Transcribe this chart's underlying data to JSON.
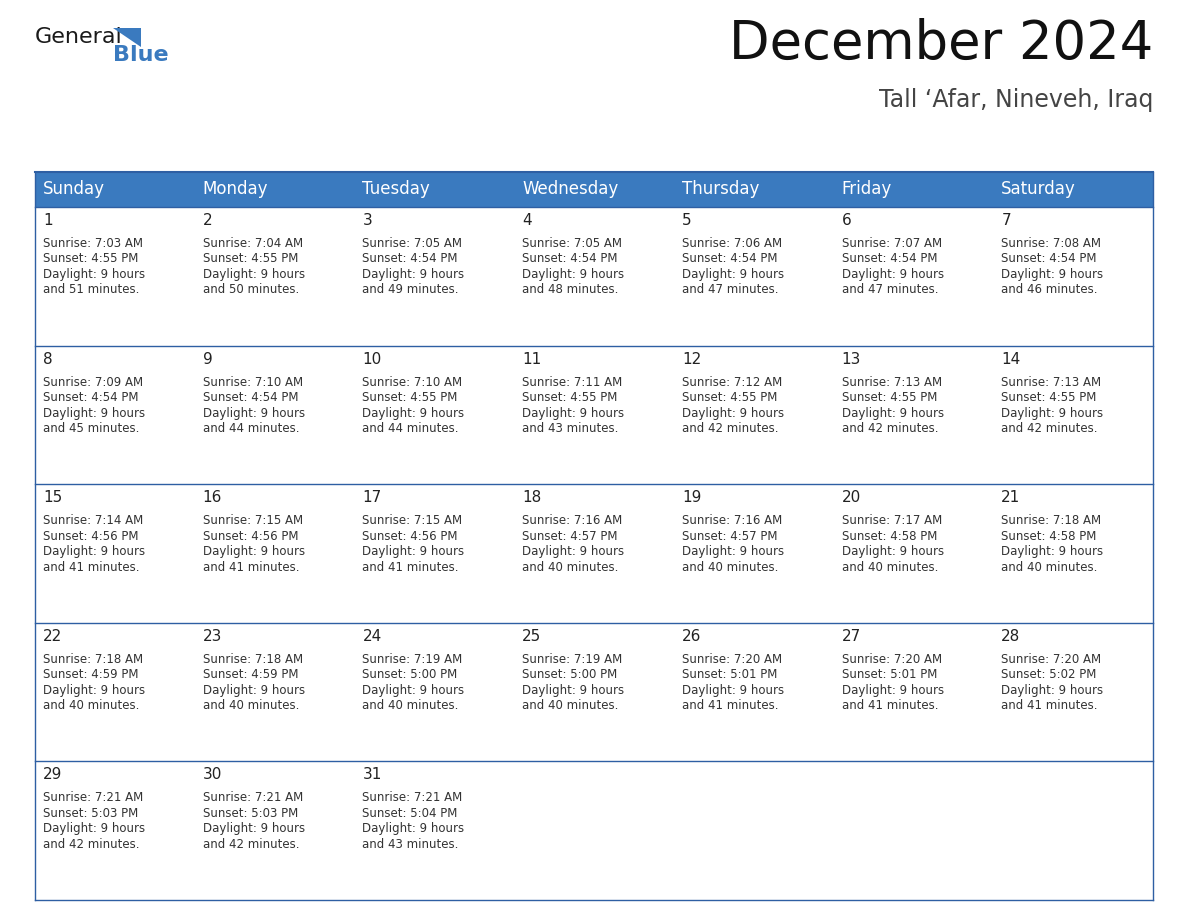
{
  "title": "December 2024",
  "subtitle": "Tall ‘Afar, Nineveh, Iraq",
  "header_color": "#3a7abf",
  "header_text_color": "#ffffff",
  "cell_text_color": "#333333",
  "day_number_color": "#222222",
  "border_color": "#2e5fa3",
  "background_color": "#ffffff",
  "days_of_week": [
    "Sunday",
    "Monday",
    "Tuesday",
    "Wednesday",
    "Thursday",
    "Friday",
    "Saturday"
  ],
  "calendar_data": [
    [
      {
        "day": 1,
        "sunrise": "7:03 AM",
        "sunset": "4:55 PM",
        "daylight_hours": 9,
        "daylight_minutes": 51
      },
      {
        "day": 2,
        "sunrise": "7:04 AM",
        "sunset": "4:55 PM",
        "daylight_hours": 9,
        "daylight_minutes": 50
      },
      {
        "day": 3,
        "sunrise": "7:05 AM",
        "sunset": "4:54 PM",
        "daylight_hours": 9,
        "daylight_minutes": 49
      },
      {
        "day": 4,
        "sunrise": "7:05 AM",
        "sunset": "4:54 PM",
        "daylight_hours": 9,
        "daylight_minutes": 48
      },
      {
        "day": 5,
        "sunrise": "7:06 AM",
        "sunset": "4:54 PM",
        "daylight_hours": 9,
        "daylight_minutes": 47
      },
      {
        "day": 6,
        "sunrise": "7:07 AM",
        "sunset": "4:54 PM",
        "daylight_hours": 9,
        "daylight_minutes": 47
      },
      {
        "day": 7,
        "sunrise": "7:08 AM",
        "sunset": "4:54 PM",
        "daylight_hours": 9,
        "daylight_minutes": 46
      }
    ],
    [
      {
        "day": 8,
        "sunrise": "7:09 AM",
        "sunset": "4:54 PM",
        "daylight_hours": 9,
        "daylight_minutes": 45
      },
      {
        "day": 9,
        "sunrise": "7:10 AM",
        "sunset": "4:54 PM",
        "daylight_hours": 9,
        "daylight_minutes": 44
      },
      {
        "day": 10,
        "sunrise": "7:10 AM",
        "sunset": "4:55 PM",
        "daylight_hours": 9,
        "daylight_minutes": 44
      },
      {
        "day": 11,
        "sunrise": "7:11 AM",
        "sunset": "4:55 PM",
        "daylight_hours": 9,
        "daylight_minutes": 43
      },
      {
        "day": 12,
        "sunrise": "7:12 AM",
        "sunset": "4:55 PM",
        "daylight_hours": 9,
        "daylight_minutes": 42
      },
      {
        "day": 13,
        "sunrise": "7:13 AM",
        "sunset": "4:55 PM",
        "daylight_hours": 9,
        "daylight_minutes": 42
      },
      {
        "day": 14,
        "sunrise": "7:13 AM",
        "sunset": "4:55 PM",
        "daylight_hours": 9,
        "daylight_minutes": 42
      }
    ],
    [
      {
        "day": 15,
        "sunrise": "7:14 AM",
        "sunset": "4:56 PM",
        "daylight_hours": 9,
        "daylight_minutes": 41
      },
      {
        "day": 16,
        "sunrise": "7:15 AM",
        "sunset": "4:56 PM",
        "daylight_hours": 9,
        "daylight_minutes": 41
      },
      {
        "day": 17,
        "sunrise": "7:15 AM",
        "sunset": "4:56 PM",
        "daylight_hours": 9,
        "daylight_minutes": 41
      },
      {
        "day": 18,
        "sunrise": "7:16 AM",
        "sunset": "4:57 PM",
        "daylight_hours": 9,
        "daylight_minutes": 40
      },
      {
        "day": 19,
        "sunrise": "7:16 AM",
        "sunset": "4:57 PM",
        "daylight_hours": 9,
        "daylight_minutes": 40
      },
      {
        "day": 20,
        "sunrise": "7:17 AM",
        "sunset": "4:58 PM",
        "daylight_hours": 9,
        "daylight_minutes": 40
      },
      {
        "day": 21,
        "sunrise": "7:18 AM",
        "sunset": "4:58 PM",
        "daylight_hours": 9,
        "daylight_minutes": 40
      }
    ],
    [
      {
        "day": 22,
        "sunrise": "7:18 AM",
        "sunset": "4:59 PM",
        "daylight_hours": 9,
        "daylight_minutes": 40
      },
      {
        "day": 23,
        "sunrise": "7:18 AM",
        "sunset": "4:59 PM",
        "daylight_hours": 9,
        "daylight_minutes": 40
      },
      {
        "day": 24,
        "sunrise": "7:19 AM",
        "sunset": "5:00 PM",
        "daylight_hours": 9,
        "daylight_minutes": 40
      },
      {
        "day": 25,
        "sunrise": "7:19 AM",
        "sunset": "5:00 PM",
        "daylight_hours": 9,
        "daylight_minutes": 40
      },
      {
        "day": 26,
        "sunrise": "7:20 AM",
        "sunset": "5:01 PM",
        "daylight_hours": 9,
        "daylight_minutes": 41
      },
      {
        "day": 27,
        "sunrise": "7:20 AM",
        "sunset": "5:01 PM",
        "daylight_hours": 9,
        "daylight_minutes": 41
      },
      {
        "day": 28,
        "sunrise": "7:20 AM",
        "sunset": "5:02 PM",
        "daylight_hours": 9,
        "daylight_minutes": 41
      }
    ],
    [
      {
        "day": 29,
        "sunrise": "7:21 AM",
        "sunset": "5:03 PM",
        "daylight_hours": 9,
        "daylight_minutes": 42
      },
      {
        "day": 30,
        "sunrise": "7:21 AM",
        "sunset": "5:03 PM",
        "daylight_hours": 9,
        "daylight_minutes": 42
      },
      {
        "day": 31,
        "sunrise": "7:21 AM",
        "sunset": "5:04 PM",
        "daylight_hours": 9,
        "daylight_minutes": 43
      },
      null,
      null,
      null,
      null
    ]
  ],
  "logo_color_general": "#1a1a1a",
  "logo_color_blue": "#3a7abf",
  "title_fontsize": 38,
  "subtitle_fontsize": 17,
  "header_fontsize": 12,
  "day_number_fontsize": 11,
  "cell_fontsize": 8.5,
  "fig_width": 11.88,
  "fig_height": 9.18,
  "dpi": 100
}
